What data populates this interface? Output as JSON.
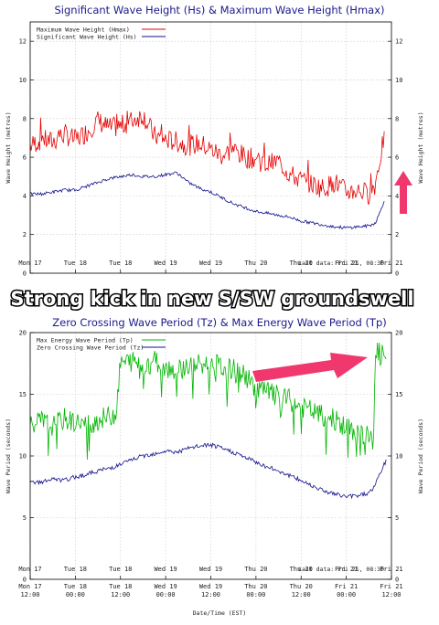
{
  "banner": "Strong kick in new S/SW groundswell",
  "x_ticks": [
    {
      "d": 0.0,
      "l1": "Mon 17",
      "l2": "12:00"
    },
    {
      "d": 0.5,
      "l1": "Tue 18",
      "l2": "00:00"
    },
    {
      "d": 1.0,
      "l1": "Tue 18",
      "l2": "12:00"
    },
    {
      "d": 1.5,
      "l1": "Wed 19",
      "l2": "00:00"
    },
    {
      "d": 2.0,
      "l1": "Wed 19",
      "l2": "12:00"
    },
    {
      "d": 2.5,
      "l1": "Thu 20",
      "l2": "00:00"
    },
    {
      "d": 3.0,
      "l1": "Thu 20",
      "l2": "12:00"
    },
    {
      "d": 3.5,
      "l1": "Fri 21",
      "l2": "00:00"
    },
    {
      "d": 4.0,
      "l1": "Fri 21",
      "l2": "12:00"
    }
  ],
  "xlabel": "Date/Time (EST)",
  "colors": {
    "red": "#e60000",
    "blue": "#10108a",
    "green": "#00b400",
    "arrow": "#f0386e",
    "title": "#1a1a8c"
  },
  "chart_data": [
    {
      "type": "line",
      "title": "Significant Wave Height (Hs) & Maximum Wave Height (Hmax)",
      "ylabel": "Wave Height (metres)",
      "ylim": [
        0,
        13
      ],
      "yticks": [
        0,
        2,
        4,
        6,
        8,
        10,
        12
      ],
      "note": "Last data: Fri 21, 08:30",
      "series": [
        {
          "name": "Maximum Wave Height (Hmax)",
          "color": "#e60000",
          "x": [
            0,
            0.125,
            0.25,
            0.375,
            0.5,
            0.625,
            0.75,
            0.875,
            1.0,
            1.125,
            1.25,
            1.375,
            1.5,
            1.625,
            1.75,
            1.875,
            2.0,
            2.125,
            2.25,
            2.375,
            2.5,
            2.625,
            2.75,
            2.875,
            3.0,
            3.125,
            3.25,
            3.375,
            3.5,
            3.625,
            3.75,
            3.82,
            3.86,
            3.9,
            3.92
          ],
          "y": [
            6.6,
            6.9,
            6.8,
            7.2,
            6.9,
            7.3,
            7.9,
            7.5,
            7.6,
            7.9,
            8.2,
            7.1,
            6.9,
            6.8,
            6.6,
            6.7,
            6.4,
            6.1,
            6.4,
            6.0,
            5.9,
            5.6,
            5.8,
            5.1,
            4.8,
            4.6,
            4.4,
            4.7,
            4.2,
            4.3,
            4.1,
            4.6,
            5.6,
            6.6,
            7.1
          ]
        },
        {
          "name": "Significant Wave Height (Hs)",
          "color": "#10108a",
          "x": [
            0,
            0.125,
            0.25,
            0.375,
            0.5,
            0.625,
            0.75,
            0.875,
            1.0,
            1.125,
            1.25,
            1.375,
            1.5,
            1.625,
            1.75,
            1.875,
            2.0,
            2.125,
            2.25,
            2.375,
            2.5,
            2.625,
            2.75,
            2.875,
            3.0,
            3.125,
            3.25,
            3.375,
            3.5,
            3.625,
            3.75,
            3.82,
            3.86,
            3.9,
            3.92
          ],
          "y": [
            4.1,
            4.1,
            4.2,
            4.3,
            4.3,
            4.5,
            4.7,
            4.9,
            5.0,
            5.1,
            5.0,
            5.0,
            5.1,
            5.2,
            4.7,
            4.4,
            4.2,
            3.9,
            3.6,
            3.4,
            3.2,
            3.1,
            3.0,
            2.9,
            2.7,
            2.6,
            2.5,
            2.4,
            2.35,
            2.4,
            2.45,
            2.6,
            3.0,
            3.5,
            3.8
          ]
        }
      ]
    },
    {
      "type": "line",
      "title": "Zero Crossing Wave Period (Tz) & Max Energy Wave Period (Tp)",
      "ylabel": "Wave Period (seconds)",
      "ylim": [
        0,
        20
      ],
      "yticks": [
        0,
        5,
        10,
        15,
        20
      ],
      "note": "Last data: Fri 21, 08:30",
      "series": [
        {
          "name": "Max Energy Wave Period (Tp)",
          "color": "#00b400",
          "x": [
            0,
            0.125,
            0.25,
            0.375,
            0.5,
            0.625,
            0.75,
            0.875,
            0.95,
            1.0,
            1.125,
            1.25,
            1.375,
            1.5,
            1.625,
            1.75,
            1.875,
            2.0,
            2.125,
            2.25,
            2.375,
            2.5,
            2.625,
            2.75,
            2.875,
            3.0,
            3.125,
            3.25,
            3.375,
            3.5,
            3.625,
            3.75,
            3.8,
            3.82,
            3.86,
            3.9,
            3.94
          ],
          "y": [
            12.5,
            12.8,
            12.4,
            13.0,
            12.7,
            12.5,
            12.9,
            13.2,
            13.5,
            17.5,
            17.7,
            17.4,
            17.8,
            17.2,
            17.0,
            17.3,
            17.4,
            17.5,
            17.2,
            17.0,
            16.5,
            15.5,
            15.2,
            14.8,
            14.5,
            14.0,
            13.6,
            13.2,
            13.0,
            12.2,
            12.0,
            11.5,
            11.0,
            18.6,
            18.4,
            18.2,
            18.0
          ]
        },
        {
          "name": "Zero Crossing Wave Period (Tz)",
          "color": "#10108a",
          "x": [
            0,
            0.125,
            0.25,
            0.375,
            0.5,
            0.625,
            0.75,
            0.875,
            1.0,
            1.125,
            1.25,
            1.375,
            1.5,
            1.625,
            1.75,
            1.875,
            2.0,
            2.125,
            2.25,
            2.375,
            2.5,
            2.625,
            2.75,
            2.875,
            3.0,
            3.125,
            3.25,
            3.375,
            3.5,
            3.625,
            3.75,
            3.82,
            3.86,
            3.9,
            3.94
          ],
          "y": [
            7.8,
            7.9,
            8.1,
            8.0,
            8.3,
            8.5,
            8.8,
            9.0,
            9.3,
            9.7,
            10.0,
            10.2,
            10.4,
            10.3,
            10.6,
            10.8,
            10.9,
            10.6,
            10.3,
            9.9,
            9.5,
            9.1,
            8.8,
            8.4,
            8.0,
            7.6,
            7.2,
            6.9,
            6.7,
            6.8,
            7.0,
            7.6,
            8.4,
            9.0,
            9.6
          ]
        }
      ]
    }
  ]
}
